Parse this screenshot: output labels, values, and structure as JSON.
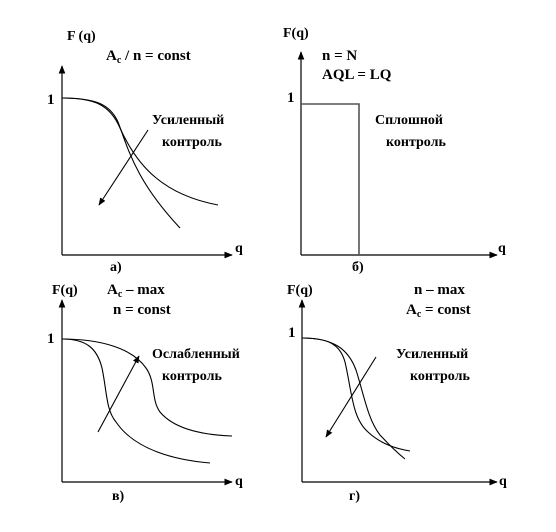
{
  "panels": {
    "a": {
      "y_axis_label": "F (q)",
      "x_axis_label": "q",
      "tick_one": "1",
      "cond_1": {
        "main": "A",
        "sub": "c",
        "rest": " / n = const"
      },
      "control": {
        "line1": "Усиленный",
        "line2": "контроль"
      },
      "caption": "а)"
    },
    "b": {
      "y_axis_label": "F(q)",
      "x_axis_label": "q",
      "tick_one": "1",
      "cond_1": "n = N",
      "cond_2": "AQL = LQ",
      "control": {
        "line1": "Сплошной",
        "line2": "контроль"
      },
      "caption": "б)"
    },
    "v": {
      "y_axis_label": "F(q)",
      "x_axis_label": "q",
      "tick_one": "1",
      "cond_1": {
        "main": "A",
        "sub": "c",
        "rest": " – max"
      },
      "cond_2": "n = const",
      "control": {
        "line1": "Ослабленный",
        "line2": "контроль"
      },
      "caption": "в)"
    },
    "g": {
      "y_axis_label": "F(q)",
      "x_axis_label": "q",
      "tick_one": "1",
      "cond_1": "n – max",
      "cond_2": {
        "main": "A",
        "sub": "c",
        "rest": " = const"
      },
      "control": {
        "line1": "Усиленный",
        "line2": "контроль"
      },
      "caption": "г)"
    }
  }
}
